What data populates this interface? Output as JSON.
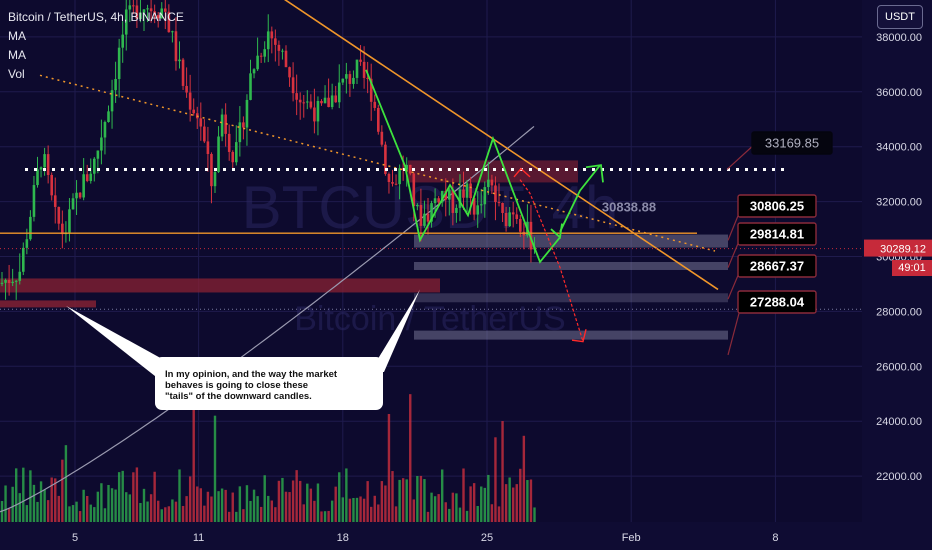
{
  "legend": {
    "title": "Bitcoin / TetherUS, 4h, BINANCE",
    "ind1": "MA",
    "ind2": "MA",
    "ind3": "Vol"
  },
  "watermark": {
    "symbol": "BTCUSDT, 4h",
    "name": "Bitcoin / TetherUS"
  },
  "currency_button": "USDT",
  "note": {
    "line1": "In my opinion, and the way the market",
    "line2": "behaves is going to close these",
    "line3": "\"tails\" of the downward candles."
  },
  "last_price": "30289.12",
  "countdown": "49:01",
  "colors": {
    "background": "#0d0a2e",
    "up": "#2fb84f",
    "down": "#d8323f",
    "trend": "#f0962a",
    "zone": "#8a2233",
    "arrow_green": "#3de23d",
    "arrow_red": "#ff2a2a"
  },
  "chart_data": {
    "type": "candlestick",
    "title": "Bitcoin / TetherUS, 4h, BINANCE",
    "y_axis": {
      "min": 20000,
      "max": 39500,
      "ticks": [
        22000,
        24000,
        26000,
        28000,
        30000,
        32000,
        34000,
        36000,
        38000
      ],
      "tick_labels": [
        "22000.00",
        "24000.00",
        "26000.00",
        "28000.00",
        "30000.00",
        "32000.00",
        "34000.00",
        "36000.00",
        "38000.00"
      ]
    },
    "x_axis": {
      "tick_labels": [
        "5",
        "11",
        "18",
        "25",
        "Feb",
        "8"
      ],
      "tick_days": [
        5,
        11,
        18,
        25,
        32,
        39
      ]
    },
    "price_levels": [
      {
        "label": "33169.85",
        "value": 33169.85
      },
      {
        "label": "30838.88",
        "value": 30838.88
      },
      {
        "label": "30806.25",
        "value": 30806.25
      },
      {
        "label": "29814.81",
        "value": 29814.81
      },
      {
        "label": "28667.37",
        "value": 28667.37
      },
      {
        "label": "27288.04",
        "value": 27288.04
      }
    ],
    "last_price": 30289.12,
    "grid": true
  }
}
